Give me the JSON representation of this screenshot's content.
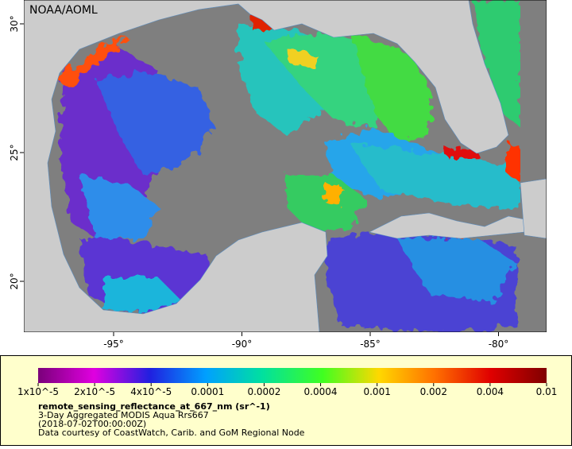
{
  "watermark": "NOAA/AOML",
  "axes": {
    "lat_labels": [
      "30°",
      "25°",
      "20°"
    ],
    "lon_labels": [
      "-95°",
      "-90°",
      "-85°",
      "-80°"
    ]
  },
  "legend": {
    "colorbar_labels": [
      "1x10^-5",
      "2x10^-5",
      "4x10^-5",
      "0.0001",
      "0.0002",
      "0.0004",
      "0.001",
      "0.002",
      "0.004",
      "0.01"
    ],
    "variable": "remote_sensing_reflectance_at_667_nm (sr^-1)",
    "lines": [
      "3-Day Aggregated MODIS Aqua Rrs667",
      "(2018-07-02T00:00:00Z)",
      "Data courtesy of CoastWatch, Carib. and GoM Regional Node"
    ]
  }
}
